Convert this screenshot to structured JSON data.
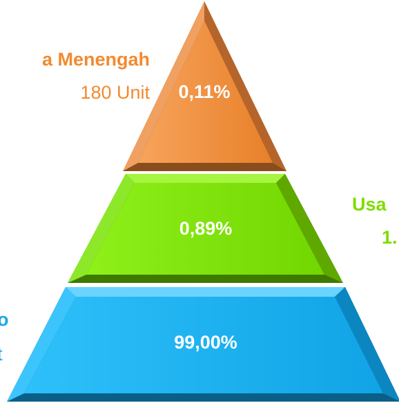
{
  "levels": [
    {
      "label": "a Menengah",
      "count": "180 Unit",
      "share": "0,11%"
    },
    {
      "label": "Usa",
      "count": "1.",
      "share": "0,89%"
    },
    {
      "label": "o",
      "count": "t",
      "share": "99,00%"
    }
  ]
}
